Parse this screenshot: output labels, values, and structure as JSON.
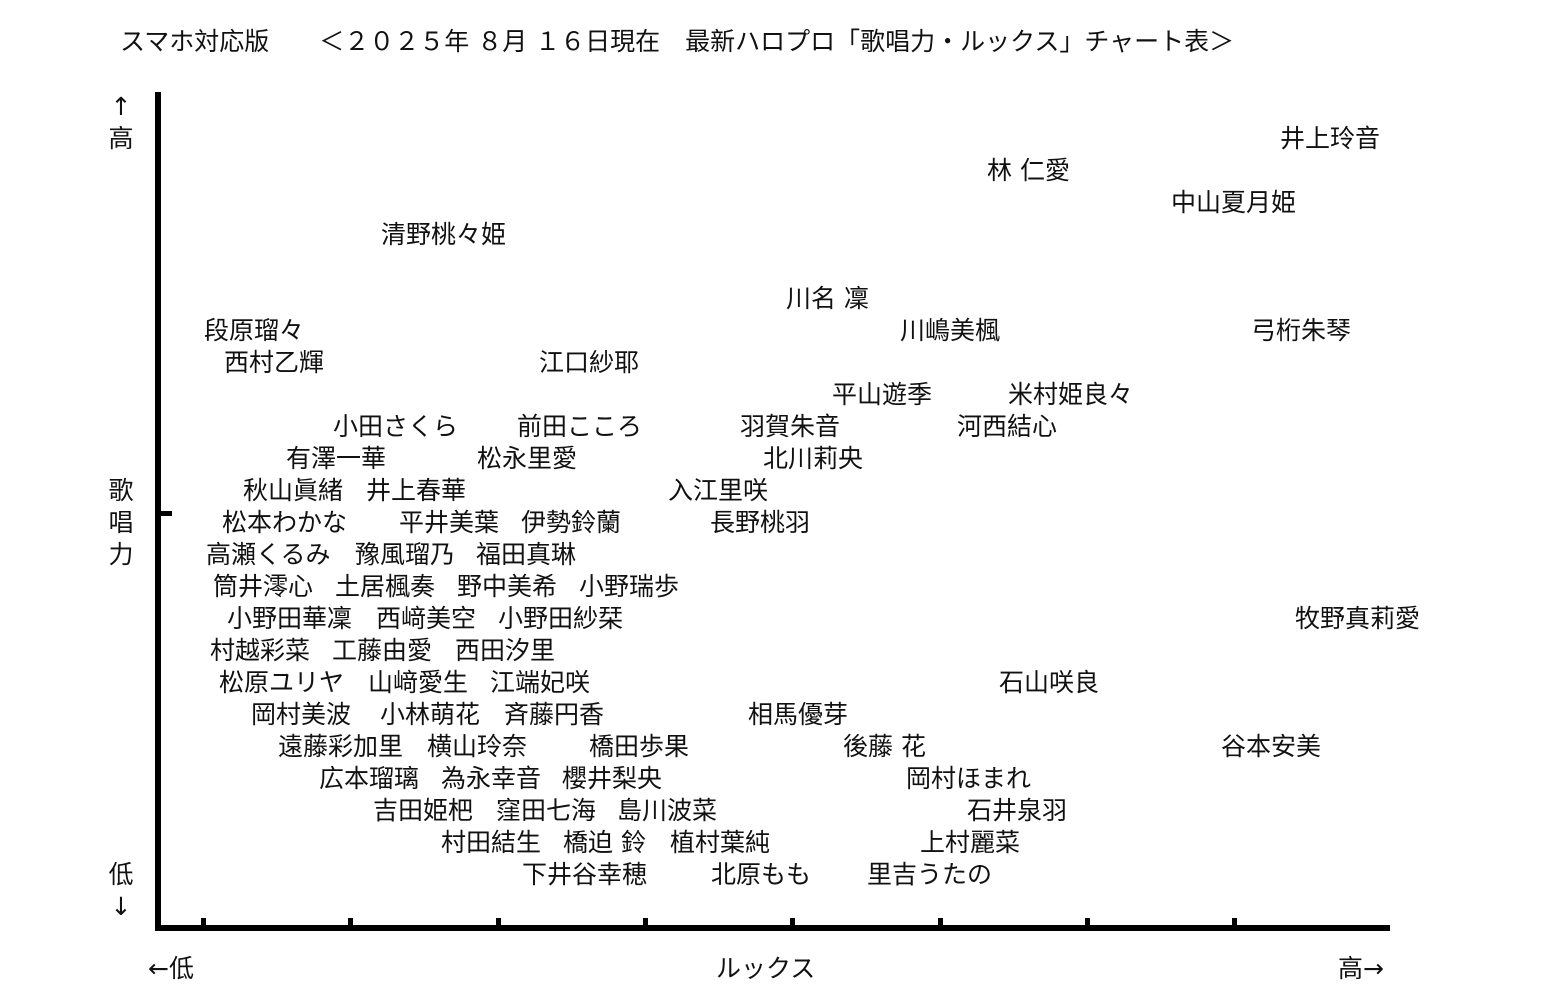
{
  "title": "スマホ対応版　　＜２０２５年 ８月 １６日現在　最新ハロプロ「歌唱力・ルックス」チャート表＞",
  "chart_data": {
    "type": "scatter",
    "title": "＜２０２５年 ８月 １６日現在　最新ハロプロ「歌唱力・ルックス」チャート表＞",
    "xlabel": "ルックス",
    "ylabel": "歌唱力",
    "x_low_label": "←低",
    "x_high_label": "高→",
    "y_high_arrow": "↑",
    "y_high_label": "高",
    "y_low_label": "低",
    "y_low_arrow": "↓",
    "ylabel_chars": [
      "歌",
      "唱",
      "力"
    ],
    "grid": false,
    "labels": [
      "井上玲音",
      "林 仁愛",
      "中山夏月姫",
      "清野桃々姫",
      "川名 凜",
      "段原瑠々",
      "川嶋美楓",
      "弓桁朱琴",
      "西村乙輝",
      "江口紗耶",
      "平山遊季",
      "米村姫良々",
      "小田さくら",
      "前田こころ",
      "羽賀朱音",
      "河西結心",
      "有澤一華",
      "松永里愛",
      "北川莉央",
      "秋山眞緒",
      "井上春華",
      "入江里咲",
      "松本わかな",
      "平井美葉",
      "伊勢鈴蘭",
      "長野桃羽",
      "高瀬くるみ",
      "豫風瑠乃",
      "福田真琳",
      "筒井澪心",
      "土居楓奏",
      "野中美希",
      "小野瑞歩",
      "小野田華凜",
      "西﨑美空",
      "小野田紗栞",
      "牧野真莉愛",
      "村越彩菜",
      "工藤由愛",
      "西田汐里",
      "松原ユリヤ",
      "山﨑愛生",
      "江端妃咲",
      "石山咲良",
      "岡村美波",
      "小林萌花",
      "斉藤円香",
      "相馬優芽",
      "遠藤彩加里",
      "横山玲奈",
      "橋田歩果",
      "後藤 花",
      "谷本安美",
      "広本瑠璃",
      "為永幸音",
      "櫻井梨央",
      "岡村ほまれ",
      "吉田姫杷",
      "窪田七海",
      "島川波菜",
      "石井泉羽",
      "村田結生",
      "橋迫 鈴",
      "植村葉純",
      "上村麗菜",
      "下井谷幸穂",
      "北原もも",
      "里吉うたの"
    ]
  }
}
